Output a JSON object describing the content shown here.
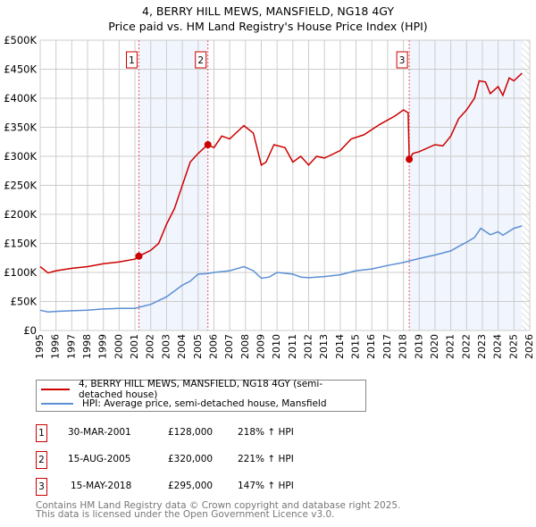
{
  "title_line1": "4, BERRY HILL MEWS, MANSFIELD, NG18 4GY",
  "title_line2": "Price paid vs. HM Land Registry's House Price Index (HPI)",
  "chart_data": {
    "type": "line",
    "xlim": [
      1995,
      2026
    ],
    "ylim": [
      0,
      500000
    ],
    "yticks": [
      0,
      50000,
      100000,
      150000,
      200000,
      250000,
      300000,
      350000,
      400000,
      450000,
      500000
    ],
    "ytick_labels": [
      "£0",
      "£50K",
      "£100K",
      "£150K",
      "£200K",
      "£250K",
      "£300K",
      "£350K",
      "£400K",
      "£450K",
      "£500K"
    ],
    "xticks": [
      1995,
      1996,
      1997,
      1998,
      1999,
      2000,
      2001,
      2002,
      2003,
      2004,
      2005,
      2006,
      2007,
      2008,
      2009,
      2010,
      2011,
      2012,
      2013,
      2014,
      2015,
      2016,
      2017,
      2018,
      2019,
      2020,
      2021,
      2022,
      2023,
      2024,
      2025,
      2026
    ],
    "grid": true,
    "data_end": 2025.5,
    "series": [
      {
        "name": "4, BERRY HILL MEWS, MANSFIELD, NG18 4GY (semi-detached house)",
        "color": "#cc0000",
        "x": [
          1995,
          1995.5,
          1996,
          1997,
          1998,
          1999,
          2000,
          2001,
          2001.25,
          2002,
          2002.5,
          2003,
          2003.5,
          2004,
          2004.5,
          2005,
          2005.6,
          2006,
          2006.5,
          2007,
          2007.9,
          2008.5,
          2009,
          2009.3,
          2009.8,
          2010.5,
          2011,
          2011.5,
          2012,
          2012.5,
          2013,
          2014,
          2014.7,
          2015.5,
          2016.5,
          2017.5,
          2018,
          2018.3,
          2018.37,
          2018.6,
          2019,
          2020,
          2020.5,
          2021,
          2021.5,
          2022,
          2022.5,
          2022.8,
          2023.2,
          2023.5,
          2024,
          2024.3,
          2024.7,
          2025,
          2025.5
        ],
        "y": [
          110000,
          99000,
          103000,
          107000,
          110000,
          115000,
          118000,
          123000,
          128000,
          138000,
          150000,
          183000,
          210000,
          250000,
          290000,
          305000,
          320000,
          315000,
          335000,
          330000,
          353000,
          340000,
          285000,
          290000,
          320000,
          315000,
          290000,
          300000,
          285000,
          300000,
          297000,
          310000,
          330000,
          337000,
          355000,
          370000,
          380000,
          375000,
          295000,
          305000,
          308000,
          320000,
          318000,
          335000,
          365000,
          380000,
          400000,
          430000,
          428000,
          408000,
          420000,
          405000,
          435000,
          430000,
          443000
        ]
      },
      {
        "name": "HPI: Average price, semi-detached house, Mansfield",
        "color": "#5b8fd4",
        "x": [
          1995,
          1995.5,
          1996,
          1997,
          1998,
          1999,
          2000,
          2001,
          2001.25,
          2002,
          2003,
          2004,
          2004.5,
          2005,
          2005.6,
          2006,
          2007,
          2007.9,
          2008.5,
          2009,
          2009.5,
          2010,
          2011,
          2011.5,
          2012,
          2013,
          2014,
          2015,
          2016,
          2017,
          2018,
          2018.4,
          2019,
          2020,
          2021,
          2021.5,
          2022,
          2022.5,
          2022.9,
          2023.5,
          2024,
          2024.3,
          2025,
          2025.5
        ],
        "y": [
          35000,
          32000,
          33000,
          34000,
          35000,
          37000,
          38000,
          38000,
          40000,
          45000,
          58000,
          78000,
          85000,
          97000,
          98000,
          100000,
          103000,
          110000,
          103000,
          90000,
          92000,
          100000,
          97000,
          92000,
          91000,
          93000,
          96000,
          103000,
          106000,
          112000,
          117000,
          120000,
          124000,
          130000,
          137000,
          145000,
          152000,
          160000,
          176000,
          165000,
          170000,
          164000,
          176000,
          180000
        ]
      }
    ],
    "sales": [
      {
        "label": "1",
        "x": 2001.25,
        "price": 128000,
        "date": "30-MAR-2001",
        "price_text": "£128,000",
        "hpi": "218% ↑ HPI"
      },
      {
        "label": "2",
        "x": 2005.62,
        "price": 320000,
        "date": "15-AUG-2005",
        "price_text": "£320,000",
        "hpi": "221% ↑ HPI"
      },
      {
        "label": "3",
        "x": 2018.37,
        "price": 295000,
        "date": "15-MAY-2018",
        "price_text": "£295,000",
        "hpi": "147% ↑ HPI"
      }
    ]
  },
  "legend": {
    "property": "4, BERRY HILL MEWS, MANSFIELD, NG18 4GY (semi-detached house)",
    "hpi": "HPI: Average price, semi-detached house, Mansfield"
  },
  "footer": {
    "line1": "Contains HM Land Registry data © Crown copyright and database right 2025.",
    "line2": "This data is licensed under the Open Government Licence v3.0."
  }
}
